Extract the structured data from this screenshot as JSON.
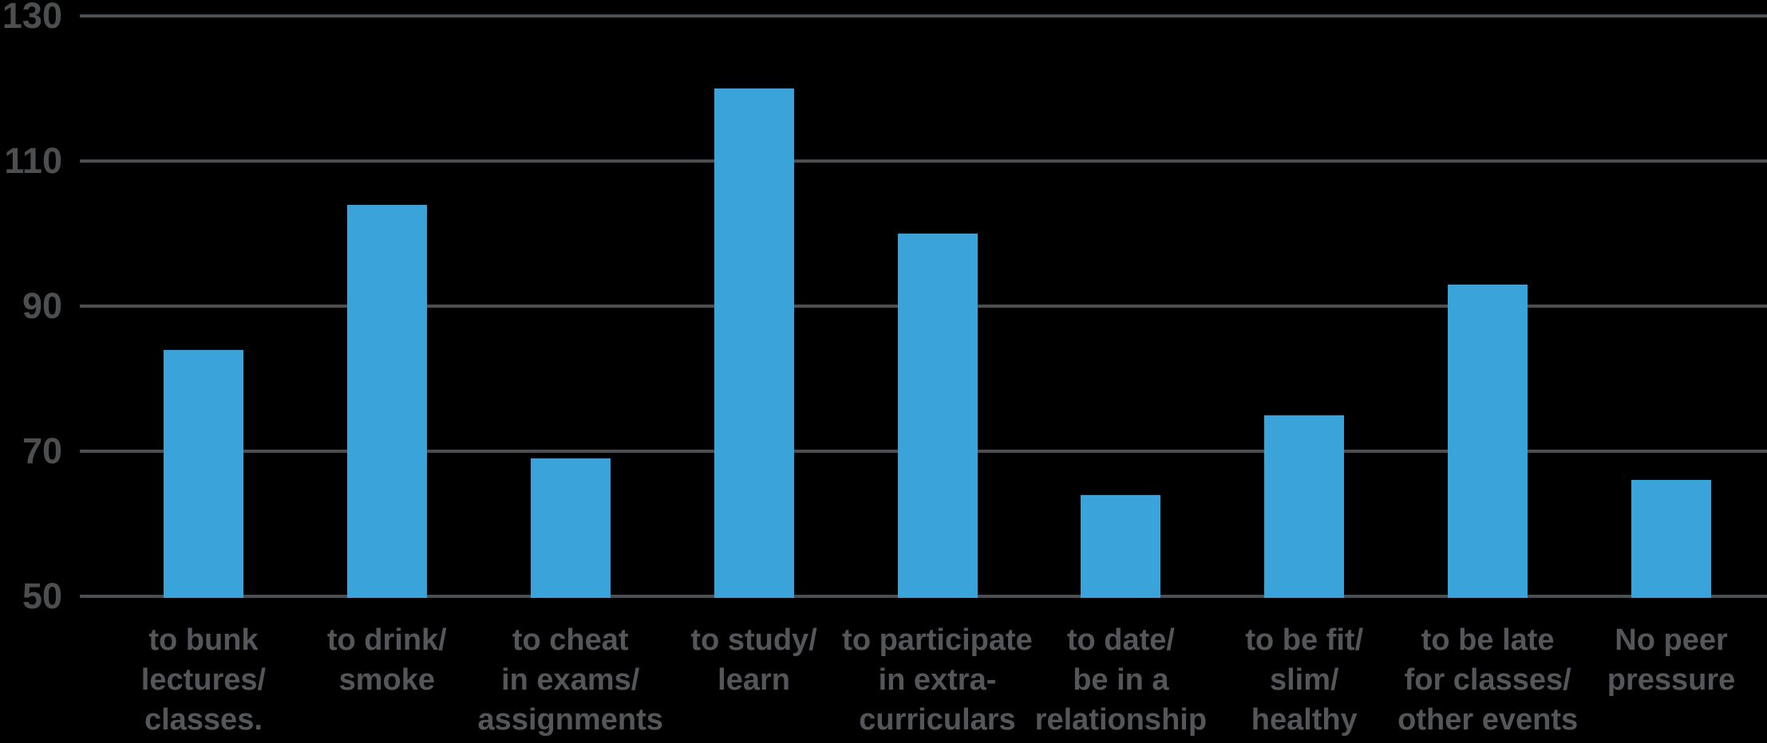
{
  "page": {
    "background_color": "#000000"
  },
  "chart_data": {
    "type": "bar",
    "title": "",
    "xlabel": "",
    "ylabel": "",
    "categories": [
      "to bunk lectures/ classes.",
      "to drink/ smoke",
      "to cheat in exams/ assignments",
      "to study/ learn",
      "to participate in extra- curriculars",
      "to date/ be in a relationship",
      "to be fit/ slim/ healthy",
      "to be late for classes/ other events",
      "No peer pressure"
    ],
    "category_lines": [
      [
        "to bunk",
        "lectures/",
        "classes."
      ],
      [
        "to drink/",
        "smoke"
      ],
      [
        "to cheat",
        "in exams/",
        "assignments"
      ],
      [
        "to study/",
        "learn"
      ],
      [
        "to participate",
        "in extra-",
        "curriculars"
      ],
      [
        "to date/",
        "be in a",
        "relationship"
      ],
      [
        "to be fit/",
        "slim/",
        "healthy"
      ],
      [
        "to be late",
        "for classes/",
        "other events"
      ],
      [
        "No peer",
        "pressure"
      ]
    ],
    "values": [
      84,
      104,
      69,
      120,
      100,
      64,
      75,
      93,
      66
    ],
    "ylim": [
      50,
      130
    ],
    "yticks": [
      130,
      110,
      90,
      70,
      50
    ],
    "grid": true,
    "legend": false,
    "legend_position": "none",
    "bar_color": "#3AA3DA",
    "gridline_color": "#4C4F52",
    "tick_label_color": "#4C4E50",
    "category_label_color": "#54565A",
    "background_color": "#000000"
  }
}
